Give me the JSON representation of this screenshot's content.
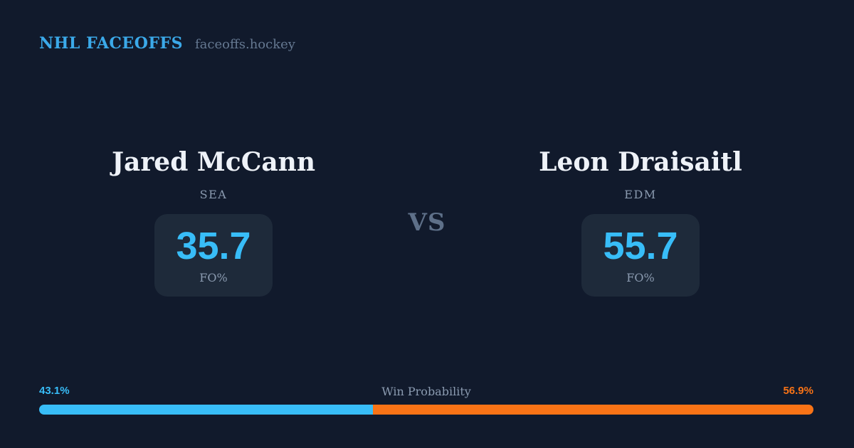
{
  "header": {
    "brand": "NHL FACEOFFS",
    "site": "faceoffs.hockey"
  },
  "players": [
    {
      "name": "Jared McCann",
      "team": "SEA",
      "stat_value": "35.7",
      "stat_label": "FO%"
    },
    {
      "name": "Leon Draisaitl",
      "team": "EDM",
      "stat_value": "55.7",
      "stat_label": "FO%"
    }
  ],
  "vs_label": "VS",
  "win_probability": {
    "label": "Win Probability",
    "left_pct_label": "43.1%",
    "right_pct_label": "56.9%",
    "left_value": 43.1,
    "right_value": 56.9
  },
  "colors": {
    "background": "#111A2C",
    "card": "#1E2A3A",
    "accent_blue": "#38BDF8",
    "accent_orange": "#F97316",
    "title_blue": "#3BA9E9",
    "text_primary": "#EEF2F8",
    "text_muted": "#8B9BB0",
    "text_dim": "#657891",
    "vs_color": "#5E7089"
  },
  "chart_data": {
    "type": "bar",
    "title": "Win Probability",
    "orientation": "horizontal-stacked",
    "categories": [
      "Jared McCann (SEA)",
      "Leon Draisaitl (EDM)"
    ],
    "series": [
      {
        "name": "Faceoff %",
        "values": [
          35.7,
          55.7
        ]
      },
      {
        "name": "Win Probability %",
        "values": [
          43.1,
          56.9
        ]
      }
    ],
    "xlim": [
      0,
      100
    ],
    "legend_position": "none",
    "grid": false
  }
}
